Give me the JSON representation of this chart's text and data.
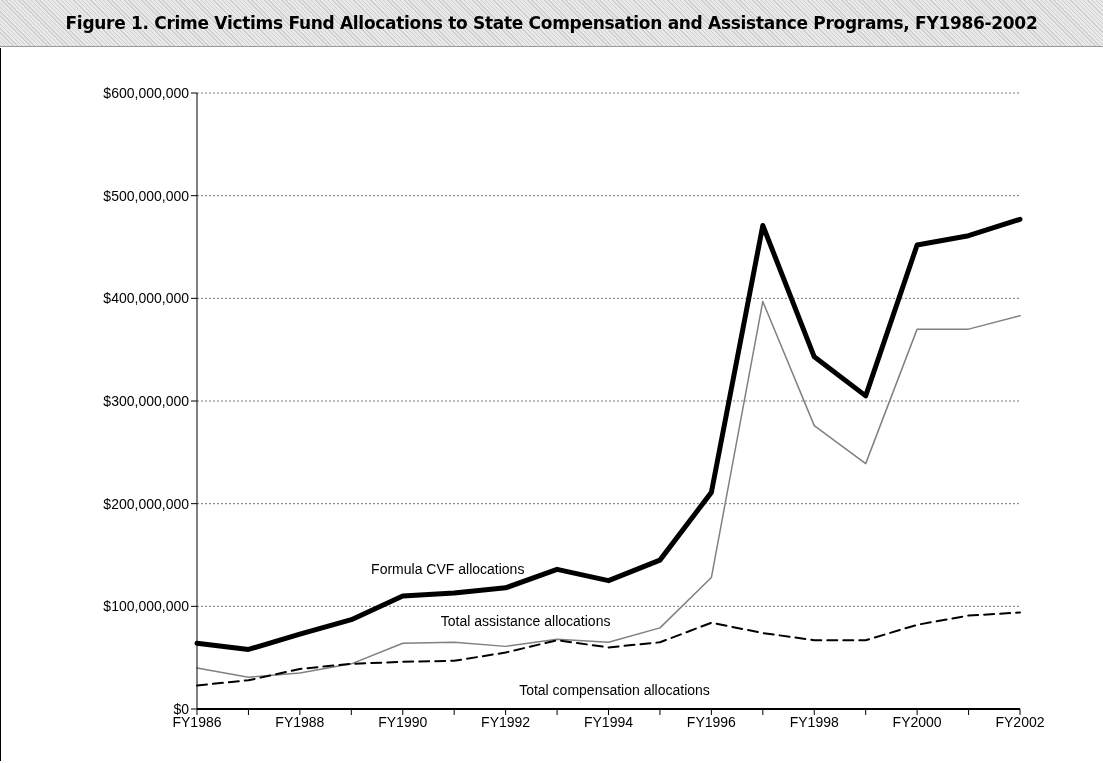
{
  "chart_data": {
    "type": "line",
    "title": "Figure 1. Crime Victims Fund Allocations to State Compensation and Assistance Programs, FY1986-2002",
    "categories": [
      "FY1986",
      null,
      "FY1988",
      null,
      "FY1990",
      null,
      "FY1992",
      null,
      "FY1994",
      null,
      "FY1996",
      null,
      "FY1998",
      null,
      "FY2000",
      null,
      "FY2002"
    ],
    "series": [
      {
        "name": "Formula CVF allocations",
        "color": "#000000",
        "line_style": "solid",
        "values": [
          64000000,
          58000000,
          73000000,
          87000000,
          110000000,
          113000000,
          118000000,
          136000000,
          125000000,
          145000000,
          211000000,
          471000000,
          343000000,
          305000000,
          452000000,
          461000000,
          477000000
        ]
      },
      {
        "name": "Total assistance allocations",
        "color": "#808080",
        "line_style": "solid",
        "values": [
          40000000,
          31000000,
          35000000,
          44000000,
          64000000,
          65000000,
          61000000,
          68000000,
          65000000,
          79000000,
          128000000,
          397000000,
          276000000,
          239000000,
          370000000,
          370000000,
          383000000
        ]
      },
      {
        "name": "Total compensation allocations",
        "color": "#000000",
        "line_style": "dashed",
        "values": [
          23000000,
          28000000,
          39000000,
          44000000,
          46000000,
          47000000,
          55000000,
          67000000,
          60000000,
          65000000,
          84000000,
          74000000,
          67000000,
          67000000,
          82000000,
          91000000,
          94000000
        ]
      }
    ],
    "ylim": [
      0,
      600000000
    ],
    "yticks": [
      {
        "value": 0,
        "label": "$0"
      },
      {
        "value": 100000000,
        "label": "$100,000,000"
      },
      {
        "value": 200000000,
        "label": "$200,000,000"
      },
      {
        "value": 300000000,
        "label": "$300,000,000"
      },
      {
        "value": 400000000,
        "label": "$400,000,000"
      },
      {
        "value": 500000000,
        "label": "$500,000,000"
      },
      {
        "value": 600000000,
        "label": "$600,000,000"
      }
    ],
    "grid": "y",
    "marker": "none"
  }
}
